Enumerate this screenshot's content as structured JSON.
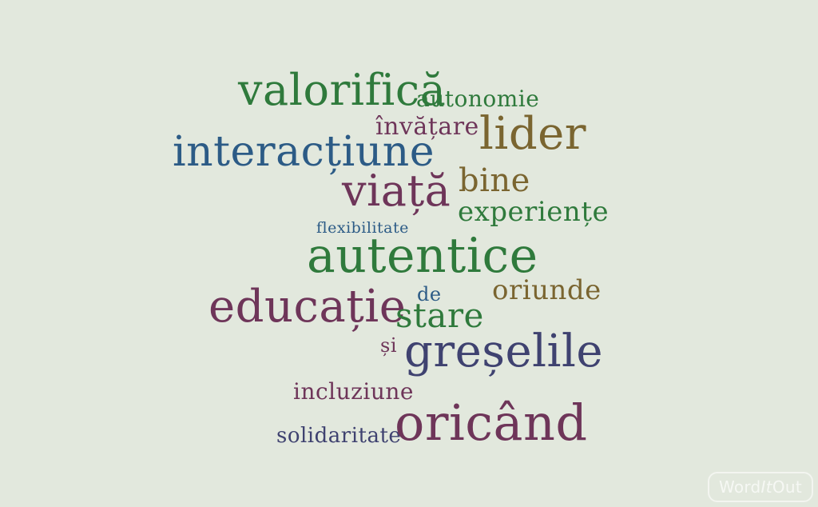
{
  "colors": {
    "background": "#e2e8dd",
    "green": "#2f7a3c",
    "plum": "#6e3559",
    "blue": "#2c5b86",
    "olive": "#7a6530",
    "navy": "#3f4270"
  },
  "words": [
    {
      "text": "valorifică",
      "color": "green"
    },
    {
      "text": "autonomie",
      "color": "green"
    },
    {
      "text": "învățare",
      "color": "plum"
    },
    {
      "text": "lider",
      "color": "olive"
    },
    {
      "text": "interacțiune",
      "color": "blue"
    },
    {
      "text": "viață",
      "color": "plum"
    },
    {
      "text": "bine",
      "color": "olive"
    },
    {
      "text": "experiențe",
      "color": "green"
    },
    {
      "text": "flexibilitate",
      "color": "blue"
    },
    {
      "text": "autentice",
      "color": "green"
    },
    {
      "text": "educație",
      "color": "plum"
    },
    {
      "text": "de",
      "color": "blue"
    },
    {
      "text": "oriunde",
      "color": "olive"
    },
    {
      "text": "stare",
      "color": "green"
    },
    {
      "text": "și",
      "color": "plum"
    },
    {
      "text": "greșelile",
      "color": "navy"
    },
    {
      "text": "incluziune",
      "color": "plum"
    },
    {
      "text": "solidaritate",
      "color": "navy"
    },
    {
      "text": "oricând",
      "color": "plum"
    }
  ],
  "logo": {
    "word": "Word",
    "it": "It",
    "out": "Out"
  }
}
